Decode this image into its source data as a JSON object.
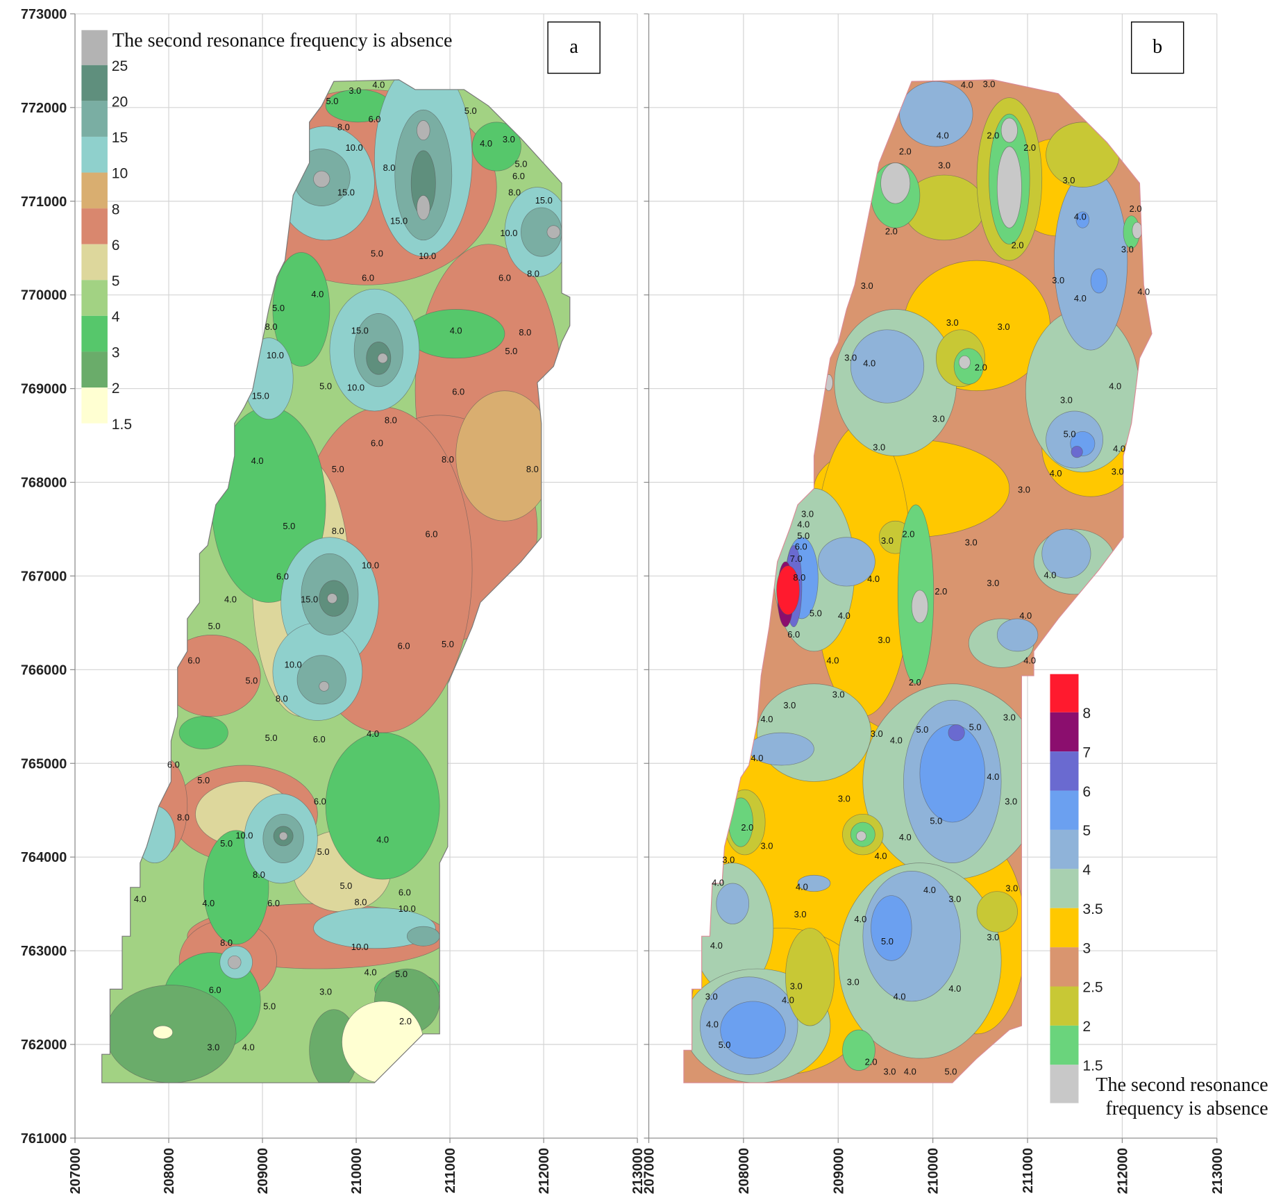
{
  "chart_data": [
    {
      "type": "contour",
      "panel_label": "a",
      "legend_title": [
        "The second resonance  frequency is absence"
      ],
      "levels": [
        25,
        20,
        15,
        10,
        8,
        6,
        5,
        4,
        3,
        2,
        1.5
      ],
      "colors": [
        "#b3b3b3",
        "#5f8f7d",
        "#7aaea3",
        "#8fd0cc",
        "#d9ae70",
        "#d9876e",
        "#ddd79c",
        "#a2d283",
        "#56c76b",
        "#6aac6a",
        "#ffffd2"
      ],
      "xlim": [
        207000,
        213000
      ],
      "ylim": [
        761000,
        773000
      ],
      "xticks": [
        207000,
        208000,
        209000,
        210000,
        211000,
        212000,
        213000
      ],
      "yticks": [
        761000,
        762000,
        763000,
        764000,
        765000,
        766000,
        767000,
        768000,
        769000,
        770000,
        771000,
        772000,
        773000
      ],
      "ytick_labels": true,
      "grid": true,
      "contour_labels": [
        "3.0",
        "4.0",
        "5.0",
        "6.0",
        "8.0",
        "10.0",
        "15.0",
        "8.0",
        "15.0",
        "10.0",
        "5.0",
        "4.0",
        "3.0",
        "5.0",
        "6.0",
        "8.0",
        "15.0",
        "10.0",
        "8.0",
        "6.0",
        "5.0",
        "6.0",
        "4.0",
        "15.0",
        "4.0",
        "5.0",
        "8.0",
        "5.0",
        "8.0",
        "10.0",
        "5.0",
        "15.0",
        "10.0",
        "8.0",
        "6.0",
        "6.0",
        "4.0",
        "5.0",
        "8.0",
        "8.0",
        "6.0",
        "5.0",
        "8.0",
        "10.0",
        "6.0",
        "15.0",
        "4.0",
        "5.0",
        "6.0",
        "5.0",
        "10.0",
        "8.0",
        "6.0",
        "5.0",
        "5.0",
        "6.0",
        "4.0",
        "6.0",
        "5.0",
        "6.0",
        "8.0",
        "10.0",
        "5.0",
        "5.0",
        "4.0",
        "8.0",
        "5.0",
        "6.0",
        "10.0",
        "8.0",
        "6.0",
        "4.0",
        "4.0",
        "8.0",
        "10.0",
        "4.0",
        "5.0",
        "6.0",
        "5.0",
        "3.0",
        "2.0",
        "3.0",
        "4.0"
      ]
    },
    {
      "type": "contour",
      "panel_label": "b",
      "legend_title": [
        "The second resonance",
        "frequency is absence"
      ],
      "levels": [
        8,
        7,
        6,
        5,
        4,
        3.5,
        3,
        2.5,
        2,
        1.5
      ],
      "colors": [
        "#ff1a2e",
        "#8b0e6e",
        "#6a6ad0",
        "#6ba0f0",
        "#8fb3d9",
        "#a8d0b0",
        "#ffc800",
        "#d9956f",
        "#c8c835",
        "#6ad47c",
        "#c8c8c8"
      ],
      "xlim": [
        207000,
        213000
      ],
      "ylim": [
        761000,
        773000
      ],
      "xticks": [
        207000,
        208000,
        209000,
        210000,
        211000,
        212000,
        213000
      ],
      "yticks": [
        761000,
        762000,
        763000,
        764000,
        765000,
        766000,
        767000,
        768000,
        769000,
        770000,
        771000,
        772000,
        773000
      ],
      "ytick_labels": false,
      "grid": true,
      "contour_labels": [
        "4.0",
        "3.0",
        "4.0",
        "2.0",
        "2.0",
        "2.0",
        "3.0",
        "2.0",
        "2.0",
        "3.0",
        "4.0",
        "2.0",
        "3.0",
        "3.0",
        "4.0",
        "4.0",
        "3.0",
        "3.0",
        "3.0",
        "4.0",
        "3.0",
        "2.0",
        "4.0",
        "3.0",
        "3.0",
        "5.0",
        "3.0",
        "4.0",
        "4.0",
        "3.0",
        "3.0",
        "3.0",
        "4.0",
        "5.0",
        "6.0",
        "7.0",
        "8.0",
        "3.0",
        "2.0",
        "3.0",
        "4.0",
        "2.0",
        "3.0",
        "4.0",
        "5.0",
        "4.0",
        "6.0",
        "3.0",
        "4.0",
        "4.0",
        "2.0",
        "3.0",
        "4.0",
        "3.0",
        "3.0",
        "4.0",
        "5.0",
        "5.0",
        "3.0",
        "4.0",
        "4.0",
        "4.0",
        "3.0",
        "3.0",
        "5.0",
        "4.0",
        "2.0",
        "3.0",
        "4.0",
        "3.0",
        "4.0",
        "4.0",
        "3.0",
        "3.0",
        "4.0",
        "4.0",
        "5.0",
        "3.0",
        "3.0",
        "4.0",
        "3.0",
        "4.0",
        "3.0",
        "4.0",
        "4.0",
        "3.0",
        "4.0",
        "5.0",
        "2.0",
        "3.0",
        "4.0",
        "5.0"
      ]
    }
  ]
}
